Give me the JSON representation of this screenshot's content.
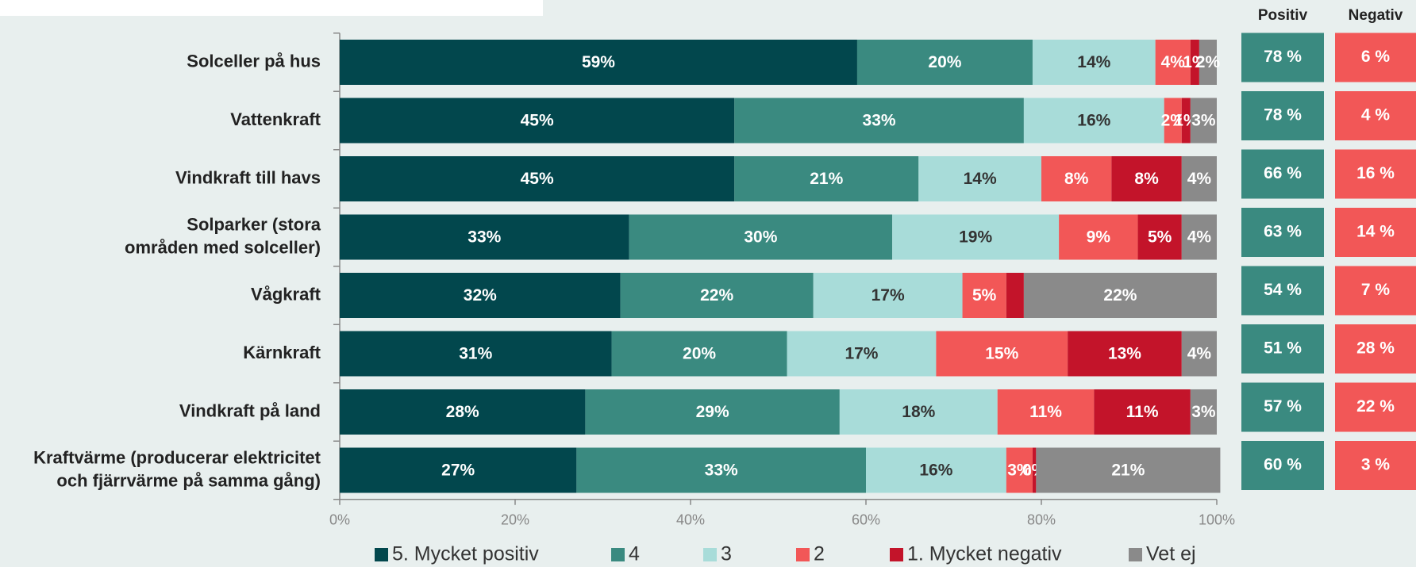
{
  "chart_data": {
    "type": "stacked-bar-horizontal",
    "categories": [
      "Solceller på hus",
      "Vattenkraft",
      "Vindkraft till havs",
      "Solparker (stora\nområden med solceller)",
      "Vågkraft",
      "Kärnkraft",
      "Vindkraft på land",
      "Kraftvärme (producerar elektricitet\noch fjärrvärme på samma gång)"
    ],
    "series": [
      {
        "name": "5. Mycket positiv",
        "color": "#02474d",
        "values": [
          59,
          45,
          45,
          33,
          32,
          31,
          28,
          27
        ],
        "value_labels": [
          "59%",
          "45%",
          "45%",
          "33%",
          "32%",
          "31%",
          "28%",
          "27%"
        ]
      },
      {
        "name": "4",
        "color": "#3a8a80",
        "values": [
          20,
          33,
          21,
          30,
          22,
          20,
          29,
          33
        ],
        "value_labels": [
          "20%",
          "33%",
          "21%",
          "30%",
          "22%",
          "20%",
          "29%",
          "33%"
        ]
      },
      {
        "name": "3",
        "color": "#a8dcd9",
        "values": [
          14,
          16,
          14,
          19,
          17,
          17,
          18,
          16
        ],
        "value_labels": [
          "14%",
          "16%",
          "14%",
          "19%",
          "17%",
          "17%",
          "18%",
          "16%"
        ]
      },
      {
        "name": "2",
        "color": "#f25757",
        "values": [
          4,
          2,
          8,
          9,
          5,
          15,
          11,
          3
        ],
        "value_labels": [
          "4%",
          "2%",
          "8%",
          "9%",
          "5%",
          "15%",
          "11%",
          "3%"
        ]
      },
      {
        "name": "1. Mycket negativ",
        "color": "#c3142a",
        "values": [
          1,
          1,
          8,
          5,
          2,
          13,
          11,
          0.4
        ],
        "value_labels": [
          "1%",
          "1%",
          "8%",
          "5%",
          null,
          "13%",
          "11%",
          "0%"
        ]
      },
      {
        "name": "Vet ej",
        "color": "#8a8a8a",
        "values": [
          2,
          3,
          4,
          4,
          22,
          4,
          3,
          21
        ],
        "value_labels": [
          "2%",
          "3%",
          "4%",
          "4%",
          "22%",
          "4%",
          "3%",
          "21%"
        ]
      }
    ],
    "xlim": [
      0,
      100
    ],
    "xticks": [
      {
        "value": 0,
        "label": "0%"
      },
      {
        "value": 20,
        "label": "20%"
      },
      {
        "value": 40,
        "label": "40%"
      },
      {
        "value": 60,
        "label": "60%"
      },
      {
        "value": 80,
        "label": "80%"
      },
      {
        "value": 100,
        "label": "100%"
      }
    ],
    "legend": "bottom",
    "summary_columns": [
      {
        "name": "Positiv",
        "color": "#3a8a80",
        "values": [
          78,
          78,
          66,
          63,
          54,
          51,
          57,
          60
        ],
        "value_labels": [
          "78 %",
          "78 %",
          "66 %",
          "63 %",
          "54 %",
          "51 %",
          "57 %",
          "60 %"
        ]
      },
      {
        "name": "Negativ",
        "color": "#f25757",
        "values": [
          6,
          4,
          16,
          14,
          7,
          28,
          22,
          3
        ],
        "value_labels": [
          "6 %",
          "4 %",
          "16 %",
          "14 %",
          "7 %",
          "28 %",
          "22 %",
          "3 %"
        ]
      }
    ]
  }
}
